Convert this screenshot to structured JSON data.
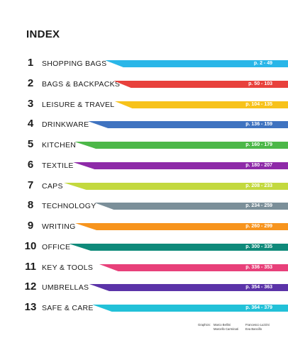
{
  "title": "INDEX",
  "items": [
    {
      "num": "1",
      "name": "SHOPPING BAGS",
      "pages": "p. 2 - 49",
      "color": "#29b6e8"
    },
    {
      "num": "2",
      "name": "BAGS & BACKPACKS",
      "pages": "p. 50 - 103",
      "color": "#e8413c"
    },
    {
      "num": "3",
      "name": "LEISURE & TRAVEL",
      "pages": "p. 104 - 135",
      "color": "#f7c21b"
    },
    {
      "num": "4",
      "name": "DRINKWARE",
      "pages": "p. 136 - 159",
      "color": "#3f73c0"
    },
    {
      "num": "5",
      "name": "KITCHEN",
      "pages": "p. 160 - 179",
      "color": "#4cb748"
    },
    {
      "num": "6",
      "name": "TEXTILE",
      "pages": "p. 180 - 207",
      "color": "#8e2aa8"
    },
    {
      "num": "7",
      "name": "CAPS",
      "pages": "p. 208 - 233",
      "color": "#c3d93f"
    },
    {
      "num": "8",
      "name": "TECHNOLOGY",
      "pages": "p. 234 - 259",
      "color": "#7b8f99"
    },
    {
      "num": "9",
      "name": "WRITING",
      "pages": "p. 260 - 299",
      "color": "#f7941d"
    },
    {
      "num": "10",
      "name": "OFFICE",
      "pages": "p. 300 - 335",
      "color": "#0f8a7a"
    },
    {
      "num": "11",
      "name": "KEY & TOOLS",
      "pages": "p. 336 - 353",
      "color": "#e8407a"
    },
    {
      "num": "12",
      "name": "UMBRELLAS",
      "pages": "p. 354 - 363",
      "color": "#5b33a8"
    },
    {
      "num": "13",
      "name": "SAFE & CARE",
      "pages": "p. 364 - 379",
      "color": "#22c1d8"
    }
  ],
  "credits": {
    "label": "Graphics:",
    "people": [
      "Marco Bellini",
      "Francesco Luzzini",
      "Marcello Carminati",
      "Eva Bancillo"
    ]
  }
}
